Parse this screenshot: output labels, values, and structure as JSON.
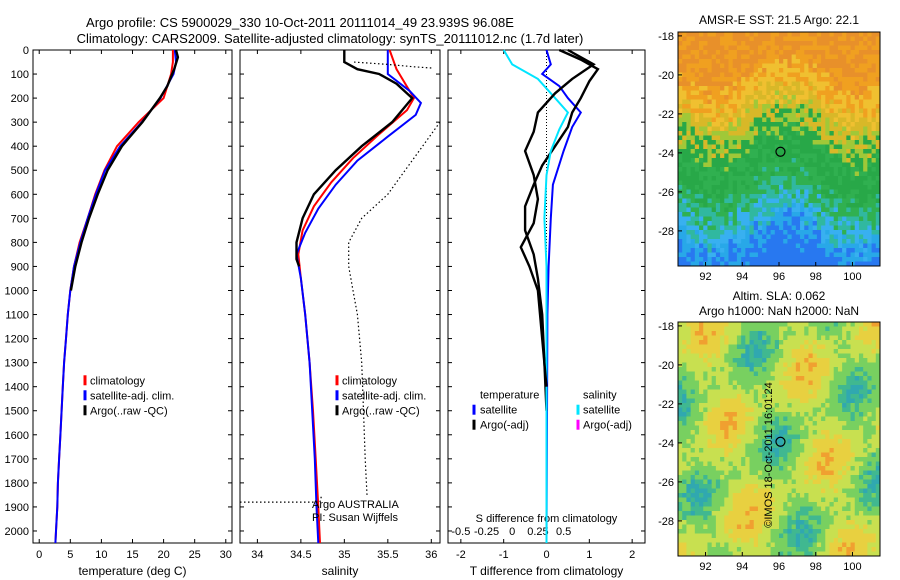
{
  "header": {
    "line1": "Argo profile: CS 5900029_330 10-Oct-2011 20111014_49 23.939S 96.08E",
    "line2": "Climatology: CARS2009. Satellite-adjusted climatology: synTS_20111012.nc (1.7d later)"
  },
  "colors": {
    "red": "#ff0000",
    "blue": "#0000ff",
    "black": "#000000",
    "cyan": "#00e5ff",
    "magenta": "#ff00ff"
  },
  "chart_data": [
    {
      "id": "temperature",
      "type": "line",
      "xlabel": "temperature (deg C)",
      "xlim": [
        -1,
        31
      ],
      "xticks": [
        0,
        5,
        10,
        15,
        20,
        25,
        30
      ],
      "ylim": [
        0,
        2050
      ],
      "yticks": [
        0,
        100,
        200,
        300,
        400,
        500,
        600,
        700,
        800,
        900,
        1000,
        1100,
        1200,
        1300,
        1400,
        1500,
        1600,
        1700,
        1800,
        1900,
        2000
      ],
      "legend": [
        "climatology",
        "satellite-adj. clim.",
        "Argo(..raw -QC)"
      ],
      "series": [
        {
          "name": "climatology",
          "color": "#ff0000",
          "points": [
            [
              21.5,
              0
            ],
            [
              21.5,
              50
            ],
            [
              21.2,
              100
            ],
            [
              20,
              200
            ],
            [
              16,
              300
            ],
            [
              12.5,
              400
            ],
            [
              10.5,
              500
            ],
            [
              9,
              600
            ],
            [
              7.8,
              700
            ],
            [
              6.5,
              800
            ],
            [
              5.6,
              900
            ],
            [
              5,
              1000
            ],
            [
              4.6,
              1100
            ],
            [
              4.3,
              1200
            ],
            [
              4,
              1300
            ],
            [
              3.8,
              1400
            ],
            [
              3.6,
              1500
            ],
            [
              3.4,
              1600
            ],
            [
              3.2,
              1700
            ],
            [
              3,
              1800
            ],
            [
              2.9,
              1900
            ],
            [
              2.7,
              2000
            ],
            [
              2.6,
              2050
            ]
          ]
        },
        {
          "name": "satellite-adj. clim.",
          "color": "#0000ff",
          "points": [
            [
              21.8,
              0
            ],
            [
              22,
              50
            ],
            [
              21.6,
              100
            ],
            [
              19.5,
              200
            ],
            [
              16.5,
              300
            ],
            [
              13,
              400
            ],
            [
              10.6,
              500
            ],
            [
              9.1,
              600
            ],
            [
              7.8,
              700
            ],
            [
              6.6,
              800
            ],
            [
              5.6,
              900
            ],
            [
              5,
              1000
            ],
            [
              4.6,
              1100
            ],
            [
              4.3,
              1200
            ],
            [
              4,
              1300
            ],
            [
              3.8,
              1400
            ],
            [
              3.6,
              1500
            ],
            [
              3.4,
              1600
            ],
            [
              3.2,
              1700
            ],
            [
              3,
              1800
            ],
            [
              2.9,
              1900
            ],
            [
              2.7,
              2000
            ],
            [
              2.6,
              2050
            ]
          ]
        },
        {
          "name": "Argo(..raw -QC)",
          "color": "#000000",
          "points": [
            [
              22,
              0
            ],
            [
              22.3,
              30
            ],
            [
              21.7,
              80
            ],
            [
              20.6,
              150
            ],
            [
              19.4,
              200
            ],
            [
              16.6,
              300
            ],
            [
              13.3,
              400
            ],
            [
              11,
              500
            ],
            [
              9.4,
              600
            ],
            [
              8,
              700
            ],
            [
              6.8,
              800
            ],
            [
              5.8,
              900
            ],
            [
              5.1,
              1000
            ]
          ]
        }
      ]
    },
    {
      "id": "salinity",
      "type": "line",
      "xlabel": "salinity",
      "xlim": [
        33.8,
        36.1
      ],
      "xticks": [
        34,
        34.5,
        35,
        35.5,
        36
      ],
      "ylim": [
        0,
        2050
      ],
      "legend": [
        "climatology",
        "satellite-adj. clim.",
        "Argo(..raw -QC)"
      ],
      "annotation": [
        "Argo AUSTRALIA",
        "PI: Susan Wijffels"
      ],
      "series": [
        {
          "name": "climatology",
          "color": "#ff0000",
          "points": [
            [
              35.52,
              0
            ],
            [
              35.6,
              80
            ],
            [
              35.8,
              200
            ],
            [
              35.72,
              250
            ],
            [
              35.4,
              350
            ],
            [
              35.1,
              450
            ],
            [
              34.85,
              550
            ],
            [
              34.65,
              650
            ],
            [
              34.52,
              750
            ],
            [
              34.47,
              850
            ],
            [
              34.5,
              950
            ],
            [
              34.55,
              1100
            ],
            [
              34.6,
              1300
            ],
            [
              34.64,
              1500
            ],
            [
              34.67,
              1700
            ],
            [
              34.7,
              1900
            ],
            [
              34.72,
              2050
            ]
          ]
        },
        {
          "name": "satellite-adj. clim.",
          "color": "#0000ff",
          "points": [
            [
              35.5,
              0
            ],
            [
              35.5,
              100
            ],
            [
              35.75,
              170
            ],
            [
              35.88,
              220
            ],
            [
              35.82,
              270
            ],
            [
              35.5,
              360
            ],
            [
              35.15,
              460
            ],
            [
              34.9,
              560
            ],
            [
              34.7,
              660
            ],
            [
              34.55,
              760
            ],
            [
              34.45,
              850
            ],
            [
              34.5,
              950
            ],
            [
              34.55,
              1100
            ],
            [
              34.6,
              1300
            ],
            [
              34.63,
              1500
            ],
            [
              34.66,
              1700
            ],
            [
              34.68,
              1900
            ],
            [
              34.7,
              2050
            ]
          ]
        },
        {
          "name": "Argo(..raw -QC)",
          "color": "#000000",
          "points": [
            [
              35.0,
              0
            ],
            [
              35.0,
              50
            ],
            [
              35.15,
              80
            ],
            [
              35.4,
              100
            ],
            [
              35.6,
              140
            ],
            [
              35.78,
              200
            ],
            [
              35.55,
              300
            ],
            [
              35.2,
              400
            ],
            [
              34.9,
              500
            ],
            [
              34.65,
              600
            ],
            [
              34.52,
              700
            ],
            [
              34.45,
              800
            ],
            [
              34.45,
              870
            ],
            [
              34.48,
              900
            ]
          ]
        },
        {
          "name": "Argo raw",
          "color": "#000000",
          "dotted": true,
          "points": [
            [
              36.0,
              75
            ],
            [
              35.8,
              70
            ],
            [
              35.5,
              60
            ],
            [
              35.1,
              50
            ]
          ]
        },
        {
          "name": "Argo raw deep",
          "color": "#000000",
          "dotted": true,
          "points": [
            [
              33.8,
              1880
            ],
            [
              34.7,
              1880
            ],
            [
              34.72,
              1880
            ],
            [
              34.74,
              1850
            ]
          ]
        },
        {
          "name": "Argo raw 2",
          "color": "#000000",
          "dotted": true,
          "points": [
            [
              36.1,
              300
            ],
            [
              35.9,
              400
            ],
            [
              35.7,
              500
            ],
            [
              35.5,
              600
            ],
            [
              35.2,
              700
            ],
            [
              35.05,
              800
            ],
            [
              35.05,
              900
            ],
            [
              35.1,
              1000
            ],
            [
              35.15,
              1100
            ],
            [
              35.2,
              1300
            ],
            [
              35.22,
              1500
            ],
            [
              35.24,
              1700
            ],
            [
              35.26,
              1850
            ]
          ]
        }
      ]
    },
    {
      "id": "difference",
      "type": "line",
      "xlabel": "T difference from climatology",
      "xlabel_top": "S difference from climatology",
      "xlim": [
        -2.3,
        2.3
      ],
      "xticks": [
        -2,
        -1,
        0,
        1,
        2
      ],
      "xticks_top": [
        "-0.5",
        "-0.25",
        "0",
        "0.25",
        "0.5"
      ],
      "ylim": [
        0,
        2050
      ],
      "legend_left_title": "temperature",
      "legend_right_title": "salinity",
      "legend_left": [
        "satellite",
        "Argo(-adj)"
      ],
      "legend_right": [
        "satellite",
        "Argo(-adj)"
      ],
      "series": [
        {
          "name": "temperature satellite",
          "color": "#0000ff",
          "points": [
            [
              0,
              0
            ],
            [
              0.1,
              60
            ],
            [
              -0.1,
              100
            ],
            [
              0.3,
              150
            ],
            [
              0.5,
              200
            ],
            [
              0.8,
              260
            ],
            [
              0.6,
              320
            ],
            [
              0.4,
              420
            ],
            [
              0.15,
              560
            ],
            [
              0.1,
              700
            ],
            [
              0.05,
              900
            ],
            [
              0.02,
              1100
            ],
            [
              0,
              2050
            ]
          ]
        },
        {
          "name": "temperature Argo(-adj)",
          "color": "#000000",
          "points": [
            [
              0.3,
              0
            ],
            [
              0.8,
              40
            ],
            [
              1.2,
              80
            ],
            [
              1.0,
              130
            ],
            [
              0.8,
              200
            ],
            [
              0.6,
              260
            ],
            [
              0.5,
              320
            ],
            [
              0.2,
              400
            ],
            [
              -0.1,
              480
            ],
            [
              -0.3,
              560
            ],
            [
              -0.5,
              650
            ],
            [
              -0.5,
              750
            ],
            [
              -0.3,
              850
            ],
            [
              -0.2,
              950
            ],
            [
              -0.1,
              1100
            ],
            [
              -0.05,
              1300
            ],
            [
              0,
              1500
            ]
          ]
        },
        {
          "name": "salinity satellite",
          "color": "#00e5ff",
          "points": [
            [
              -1.0,
              0
            ],
            [
              -0.8,
              60
            ],
            [
              -0.2,
              120
            ],
            [
              0.2,
              200
            ],
            [
              0.5,
              260
            ],
            [
              0.3,
              330
            ],
            [
              0.1,
              420
            ],
            [
              0,
              520
            ],
            [
              -0.05,
              700
            ],
            [
              0,
              900
            ],
            [
              0,
              2050
            ]
          ]
        },
        {
          "name": "salinity Argo(-adj)",
          "color": "#000000",
          "points": [
            [
              0.5,
              0
            ],
            [
              1.1,
              60
            ],
            [
              0.6,
              120
            ],
            [
              0.2,
              180
            ],
            [
              -0.2,
              260
            ],
            [
              -0.3,
              340
            ],
            [
              -0.5,
              420
            ],
            [
              -0.3,
              520
            ],
            [
              -0.2,
              620
            ],
            [
              -0.3,
              720
            ],
            [
              -0.6,
              820
            ],
            [
              -0.4,
              900
            ],
            [
              -0.2,
              1000
            ],
            [
              -0.1,
              1200
            ],
            [
              0,
              1400
            ]
          ]
        }
      ]
    },
    {
      "id": "sst-map",
      "type": "heatmap",
      "title": "AMSR-E SST: 21.5 Argo: 22.1",
      "xlim": [
        90.5,
        101.5
      ],
      "ylim": [
        -29.8,
        -17.8
      ],
      "xticks": [
        92,
        94,
        96,
        98,
        100
      ],
      "yticks": [
        -18,
        -20,
        -22,
        -24,
        -26,
        -28
      ],
      "marker": [
        96.08,
        -23.94
      ]
    },
    {
      "id": "sla-map",
      "type": "heatmap",
      "title1": "Altim. SLA: 0.062",
      "title2": "Argo h1000: NaN h2000: NaN",
      "xlim": [
        90.5,
        101.5
      ],
      "ylim": [
        -29.8,
        -17.8
      ],
      "xticks": [
        92,
        94,
        96,
        98,
        100
      ],
      "yticks": [
        -18,
        -20,
        -22,
        -24,
        -26,
        -28
      ],
      "marker": [
        96.08,
        -23.94
      ]
    }
  ],
  "footer": {
    "credit": "©IMOS 18-Oct-2011 16:01:24"
  }
}
